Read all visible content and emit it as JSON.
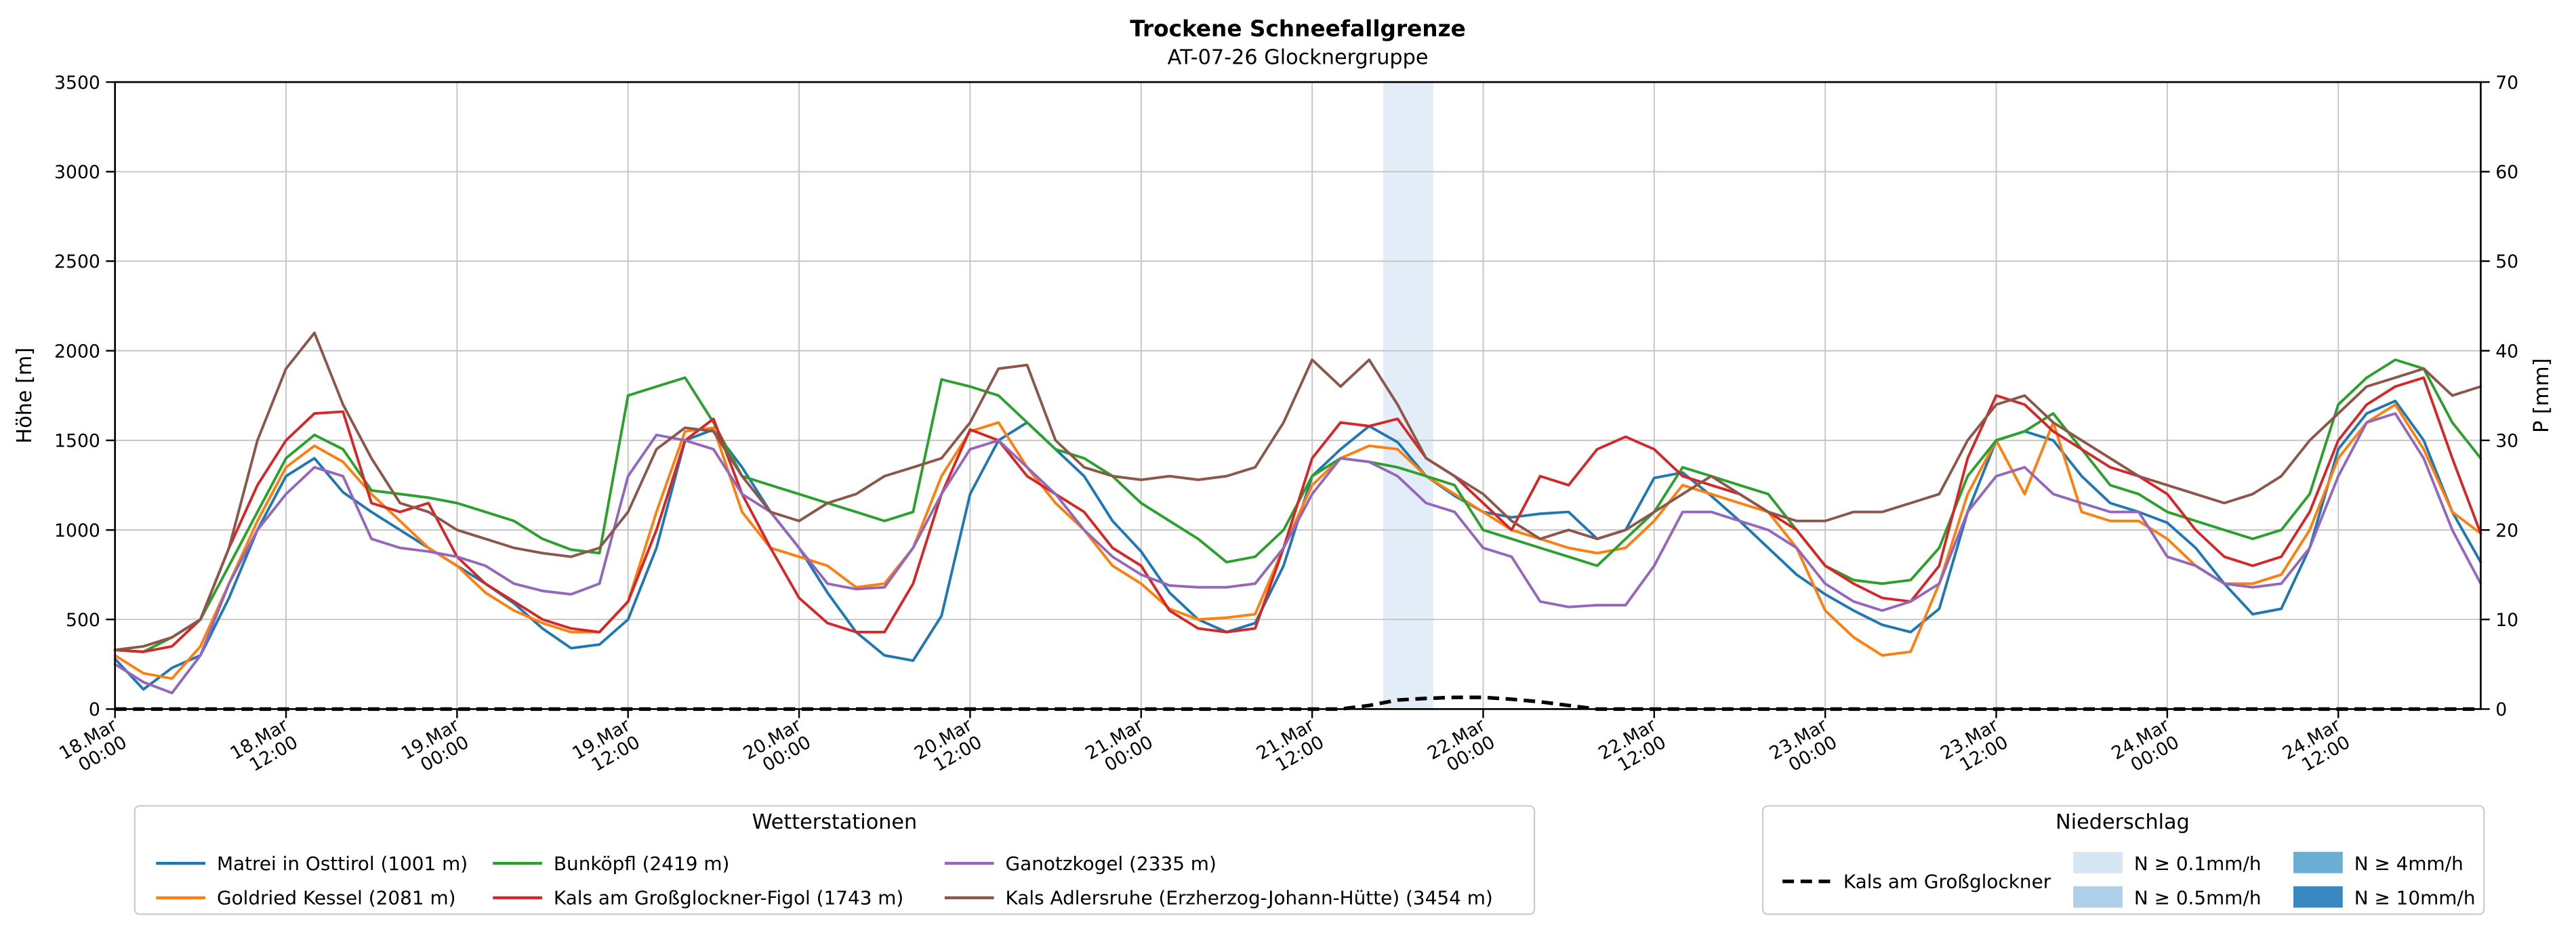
{
  "chart_data": {
    "type": "line",
    "title": "Trockene Schneefallgrenze",
    "subtitle": "AT-07-26 Glocknergruppe",
    "x_axis": {
      "range_hours": [
        0,
        166
      ],
      "ticks": [
        {
          "h": 0,
          "line1": "18.Mar",
          "line2": "00:00"
        },
        {
          "h": 12,
          "line1": "18.Mar",
          "line2": "12:00"
        },
        {
          "h": 24,
          "line1": "19.Mar",
          "line2": "00:00"
        },
        {
          "h": 36,
          "line1": "19.Mar",
          "line2": "12:00"
        },
        {
          "h": 48,
          "line1": "20.Mar",
          "line2": "00:00"
        },
        {
          "h": 60,
          "line1": "20.Mar",
          "line2": "12:00"
        },
        {
          "h": 72,
          "line1": "21.Mar",
          "line2": "00:00"
        },
        {
          "h": 84,
          "line1": "21.Mar",
          "line2": "12:00"
        },
        {
          "h": 96,
          "line1": "22.Mar",
          "line2": "00:00"
        },
        {
          "h": 108,
          "line1": "22.Mar",
          "line2": "12:00"
        },
        {
          "h": 120,
          "line1": "23.Mar",
          "line2": "00:00"
        },
        {
          "h": 132,
          "line1": "23.Mar",
          "line2": "12:00"
        },
        {
          "h": 144,
          "line1": "24.Mar",
          "line2": "00:00"
        },
        {
          "h": 156,
          "line1": "24.Mar",
          "line2": "12:00"
        }
      ]
    },
    "y_left": {
      "label": "Höhe [m]",
      "min": 0,
      "max": 3500,
      "ticks": [
        0,
        500,
        1000,
        1500,
        2000,
        2500,
        3000,
        3500
      ]
    },
    "y_right": {
      "label": "P [mm]",
      "min": 0,
      "max": 70,
      "ticks": [
        0,
        10,
        20,
        30,
        40,
        50,
        60,
        70
      ]
    },
    "sample_step_hours": 2,
    "series": [
      {
        "name": "Matrei in Osttirol (1001 m)",
        "color": "#1f77b4",
        "axis": "left",
        "values": [
          280,
          110,
          230,
          300,
          620,
          1000,
          1300,
          1400,
          1210,
          1100,
          1000,
          900,
          800,
          700,
          590,
          450,
          340,
          360,
          500,
          900,
          1500,
          1560,
          1350,
          1100,
          900,
          650,
          430,
          300,
          270,
          520,
          1200,
          1500,
          1600,
          1450,
          1300,
          1050,
          880,
          650,
          500,
          430,
          480,
          800,
          1300,
          1450,
          1580,
          1490,
          1300,
          1190,
          1100,
          1070,
          1090,
          1100,
          950,
          1000,
          1290,
          1320,
          1190,
          1050,
          900,
          750,
          640,
          550,
          470,
          430,
          560,
          1100,
          1500,
          1550,
          1500,
          1300,
          1150,
          1100,
          1040,
          900,
          700,
          530,
          560,
          900,
          1450,
          1650,
          1720,
          1500,
          1100,
          820
        ]
      },
      {
        "name": "Goldried Kessel (2081 m)",
        "color": "#ff7f0e",
        "axis": "left",
        "values": [
          300,
          200,
          170,
          350,
          700,
          1050,
          1350,
          1470,
          1380,
          1200,
          1050,
          900,
          800,
          650,
          550,
          480,
          430,
          430,
          600,
          1100,
          1550,
          1570,
          1100,
          900,
          850,
          800,
          680,
          700,
          900,
          1300,
          1550,
          1600,
          1350,
          1150,
          1000,
          800,
          700,
          560,
          500,
          510,
          530,
          900,
          1250,
          1400,
          1470,
          1450,
          1300,
          1200,
          1100,
          1000,
          950,
          900,
          870,
          900,
          1050,
          1250,
          1200,
          1150,
          1100,
          900,
          550,
          400,
          300,
          320,
          700,
          1200,
          1500,
          1200,
          1600,
          1100,
          1050,
          1050,
          950,
          800,
          700,
          700,
          750,
          1000,
          1400,
          1600,
          1700,
          1450,
          1100,
          980
        ]
      },
      {
        "name": "Bunköpfl (2419 m)",
        "color": "#2ca02c",
        "axis": "left",
        "values": [
          330,
          320,
          400,
          500,
          800,
          1100,
          1400,
          1530,
          1450,
          1220,
          1200,
          1180,
          1150,
          1100,
          1050,
          950,
          890,
          870,
          1750,
          1800,
          1850,
          1600,
          1300,
          1250,
          1200,
          1150,
          1100,
          1050,
          1100,
          1840,
          1800,
          1750,
          1600,
          1450,
          1400,
          1300,
          1150,
          1050,
          950,
          820,
          850,
          1000,
          1300,
          1400,
          1380,
          1350,
          1300,
          1250,
          1000,
          950,
          900,
          850,
          800,
          950,
          1100,
          1350,
          1300,
          1250,
          1200,
          1000,
          800,
          720,
          700,
          720,
          900,
          1300,
          1500,
          1550,
          1650,
          1450,
          1250,
          1200,
          1100,
          1050,
          1000,
          950,
          1000,
          1200,
          1700,
          1850,
          1950,
          1900,
          1600,
          1400
        ]
      },
      {
        "name": "Kals am Großglockner-Figol (1743 m)",
        "color": "#d62728",
        "axis": "left",
        "values": [
          330,
          320,
          350,
          500,
          900,
          1250,
          1500,
          1650,
          1660,
          1150,
          1100,
          1150,
          850,
          700,
          600,
          500,
          450,
          430,
          600,
          1000,
          1500,
          1620,
          1200,
          900,
          620,
          480,
          430,
          430,
          700,
          1200,
          1560,
          1500,
          1300,
          1200,
          1100,
          900,
          800,
          550,
          450,
          430,
          450,
          900,
          1400,
          1600,
          1580,
          1620,
          1400,
          1300,
          1150,
          1000,
          1300,
          1250,
          1450,
          1520,
          1450,
          1300,
          1250,
          1200,
          1100,
          1000,
          800,
          700,
          620,
          600,
          800,
          1400,
          1750,
          1700,
          1550,
          1450,
          1350,
          1300,
          1200,
          1000,
          850,
          800,
          850,
          1100,
          1500,
          1700,
          1800,
          1850,
          1400,
          980
        ]
      },
      {
        "name": "Ganotzkogel (2335 m)",
        "color": "#9467bd",
        "axis": "left",
        "values": [
          250,
          150,
          90,
          300,
          700,
          1000,
          1200,
          1350,
          1300,
          950,
          900,
          880,
          850,
          800,
          700,
          660,
          640,
          700,
          1300,
          1530,
          1500,
          1450,
          1200,
          1100,
          900,
          700,
          670,
          680,
          900,
          1200,
          1450,
          1500,
          1350,
          1200,
          1000,
          850,
          750,
          690,
          680,
          680,
          700,
          900,
          1200,
          1400,
          1380,
          1300,
          1150,
          1100,
          900,
          850,
          600,
          570,
          580,
          580,
          800,
          1100,
          1100,
          1050,
          1000,
          900,
          700,
          600,
          550,
          600,
          700,
          1100,
          1300,
          1350,
          1200,
          1150,
          1100,
          1100,
          850,
          800,
          700,
          680,
          700,
          900,
          1300,
          1600,
          1650,
          1400,
          1000,
          700
        ]
      },
      {
        "name": "Kals Adlersruhe (Erzherzog-Johann-Hütte) (3454 m)",
        "color": "#8c564b",
        "axis": "left",
        "values": [
          330,
          350,
          400,
          500,
          900,
          1500,
          1900,
          2100,
          1700,
          1400,
          1150,
          1100,
          1000,
          950,
          900,
          870,
          850,
          900,
          1100,
          1450,
          1570,
          1550,
          1300,
          1100,
          1050,
          1150,
          1200,
          1300,
          1350,
          1400,
          1600,
          1900,
          1920,
          1500,
          1350,
          1300,
          1280,
          1300,
          1280,
          1300,
          1350,
          1600,
          1950,
          1800,
          1950,
          1700,
          1400,
          1300,
          1200,
          1050,
          950,
          1000,
          950,
          1000,
          1100,
          1200,
          1300,
          1200,
          1100,
          1050,
          1050,
          1100,
          1100,
          1150,
          1200,
          1500,
          1700,
          1750,
          1600,
          1500,
          1400,
          1300,
          1250,
          1200,
          1150,
          1200,
          1300,
          1500,
          1650,
          1800,
          1850,
          1900,
          1750,
          1800
        ]
      }
    ],
    "precipitation": {
      "name": "Kals am Großglockner",
      "color": "#000000",
      "style": "dashed",
      "axis": "right",
      "values": [
        0,
        0,
        0,
        0,
        0,
        0,
        0,
        0,
        0,
        0,
        0,
        0,
        0,
        0,
        0,
        0,
        0,
        0,
        0,
        0,
        0,
        0,
        0,
        0,
        0,
        0,
        0,
        0,
        0,
        0,
        0,
        0,
        0,
        0,
        0,
        0,
        0,
        0,
        0,
        0,
        0,
        0,
        0,
        0,
        0.4,
        1.0,
        1.2,
        1.3,
        1.3,
        1.1,
        0.8,
        0.4,
        0,
        0,
        0,
        0,
        0,
        0,
        0,
        0,
        0,
        0,
        0,
        0,
        0,
        0,
        0,
        0,
        0,
        0,
        0,
        0,
        0,
        0,
        0,
        0,
        0,
        0,
        0,
        0,
        0,
        0,
        0,
        0
      ]
    },
    "shaded_bands": [
      {
        "start_hour": 89,
        "end_hour": 92.5,
        "level_label": "N ≥ 0.1mm/h",
        "color": "#e2edf8"
      }
    ]
  },
  "legend_stations": {
    "title": "Wetterstationen",
    "items": [
      {
        "label": "Matrei in Osttirol (1001 m)",
        "color": "#1f77b4"
      },
      {
        "label": "Goldried Kessel (2081 m)",
        "color": "#ff7f0e"
      },
      {
        "label": "Bunköpfl (2419 m)",
        "color": "#2ca02c"
      },
      {
        "label": "Kals am Großglockner-Figol (1743 m)",
        "color": "#d62728"
      },
      {
        "label": "Ganotzkogel (2335 m)",
        "color": "#9467bd"
      },
      {
        "label": "Kals Adlersruhe (Erzherzog-Johann-Hütte) (3454 m)",
        "color": "#8c564b"
      }
    ]
  },
  "legend_precip": {
    "title": "Niederschlag",
    "line_item": {
      "label": "Kals am Großglockner"
    },
    "patch_items": [
      {
        "label": "N ≥ 0.1mm/h",
        "color": "#d6e5f4"
      },
      {
        "label": "N ≥ 0.5mm/h",
        "color": "#b0cfe8"
      },
      {
        "label": "N ≥ 4mm/h",
        "color": "#6aaed6"
      },
      {
        "label": "N ≥ 10mm/h",
        "color": "#3787c0"
      }
    ]
  }
}
